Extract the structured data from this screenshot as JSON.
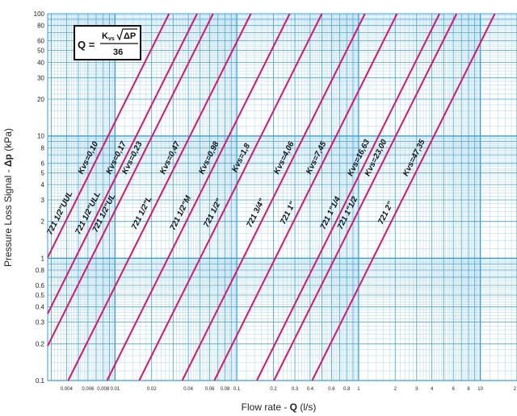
{
  "chart_data": {
    "type": "line",
    "x_scale": "log",
    "y_scale": "log",
    "xlim": [
      0.0028,
      20
    ],
    "ylim": [
      0.1,
      100
    ],
    "grid": true,
    "x_ticks": [
      "0.004",
      "0.006",
      "0.008",
      "0.01",
      "0.02",
      "0.04",
      "0.06",
      "0.08",
      "0.1",
      "0.2",
      "0.3",
      "0.4",
      "0.6",
      "0.8",
      "1",
      "2",
      "3",
      "4",
      "6",
      "8",
      "10",
      "2"
    ],
    "y_ticks": [
      "0.1",
      "0.2",
      "0.3",
      "0.4",
      "0.5",
      "0.6",
      "0.8",
      "1",
      "2",
      "3",
      "4",
      "5",
      "6",
      "8",
      "10",
      "20",
      "30",
      "40",
      "50",
      "60",
      "80",
      "100"
    ],
    "xlabel_prefix": "Flow rate - ",
    "xlabel_symbol": "Q",
    "xlabel_unit": " (l/s)",
    "ylabel_prefix": "Pressure Loss Signal - ",
    "ylabel_symbol": "Δp",
    "ylabel_unit": " (kPa)",
    "formula": {
      "lhs": "Q  =",
      "kvs": "K",
      "kvs_sub": "vs",
      "radicand": "ΔP",
      "denominator": "36"
    },
    "line_color": "#d6176e",
    "grid_major_color": "#3aa0d6",
    "grid_minor_color": "#9fd0ec",
    "series": [
      {
        "model": "721 1/2\"UUL",
        "kvs_label": "Kvs=0,10",
        "kvs": 0.1
      },
      {
        "model": "721 1/2\"ULL",
        "kvs_label": "Kvs=0,17",
        "kvs": 0.17
      },
      {
        "model": "721 1/2\"UL",
        "kvs_label": "Kvs=0,23",
        "kvs": 0.23
      },
      {
        "model": "721 1/2\"L",
        "kvs_label": "Kvs=0,47",
        "kvs": 0.47
      },
      {
        "model": "721 1/2\"M",
        "kvs_label": "Kvs=0,98",
        "kvs": 0.98
      },
      {
        "model": "721 1/2\"",
        "kvs_label": "Kvs=1,8",
        "kvs": 1.8
      },
      {
        "model": "721 3/4\"",
        "kvs_label": "Kvs=4,06",
        "kvs": 4.06
      },
      {
        "model": "721 1\"",
        "kvs_label": "Kvs=7,45",
        "kvs": 7.45
      },
      {
        "model": "721 1\"1/4",
        "kvs_label": "Kvs=16,63",
        "kvs": 16.63
      },
      {
        "model": "721 1\"1/2",
        "kvs_label": "Kvs=23,00",
        "kvs": 23.0
      },
      {
        "model": "721 2\"",
        "kvs_label": "Kvs=47,35",
        "kvs": 47.35
      }
    ]
  }
}
